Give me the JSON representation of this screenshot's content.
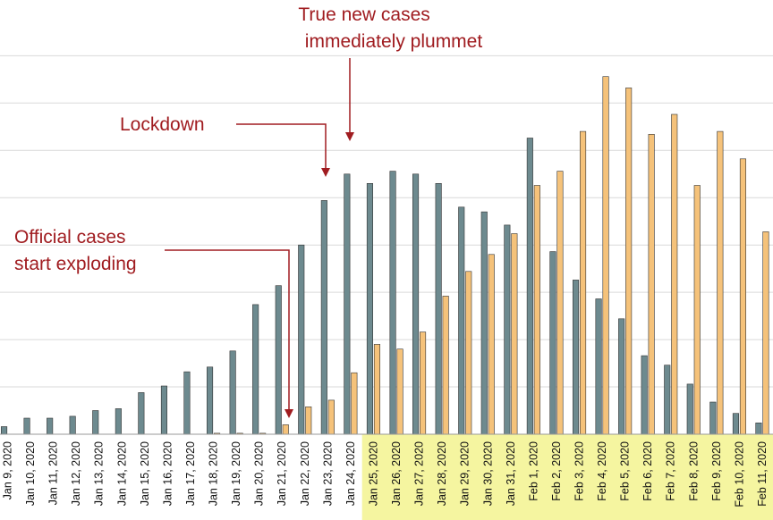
{
  "chart_data": {
    "type": "bar",
    "ylim": [
      0,
      4400
    ],
    "grid": true,
    "gridlines": [
      500,
      1000,
      1500,
      2000,
      2500,
      3000,
      3500,
      4000
    ],
    "categories": [
      "Jan 9, 2020",
      "Jan 10, 2020",
      "Jan 11, 2020",
      "Jan 12, 2020",
      "Jan 13, 2020",
      "Jan 14, 2020",
      "Jan 15, 2020",
      "Jan 16, 2020",
      "Jan 17, 2020",
      "Jan 18, 2020",
      "Jan 19, 2020",
      "Jan 20, 2020",
      "Jan 21, 2020",
      "Jan 22, 2020",
      "Jan 23, 2020",
      "Jan 24, 2020",
      "Jan 25, 2020",
      "Jan 26, 2020",
      "Jan 27, 2020",
      "Jan 28, 2020",
      "Jan 29, 2020",
      "Jan 30, 2020",
      "Jan 31, 2020",
      "Feb 1, 2020",
      "Feb 2, 2020",
      "Feb 3, 2020",
      "Feb 4, 2020",
      "Feb 5, 2020",
      "Feb 6, 2020",
      "Feb 7, 2020",
      "Feb 8, 2020",
      "Feb 9, 2020",
      "Feb 10, 2020",
      "Feb 11, 2020"
    ],
    "highlighted_categories": [
      "Jan 25, 2020",
      "Jan 26, 2020",
      "Jan 27, 2020",
      "Jan 28, 2020",
      "Jan 29, 2020",
      "Jan 30, 2020",
      "Jan 31, 2020",
      "Feb 1, 2020",
      "Feb 2, 2020",
      "Feb 3, 2020",
      "Feb 4, 2020",
      "Feb 5, 2020",
      "Feb 6, 2020",
      "Feb 7, 2020",
      "Feb 8, 2020",
      "Feb 9, 2020",
      "Feb 10, 2020",
      "Feb 11, 2020"
    ],
    "highlight_color": "#f5f5a0",
    "series": [
      {
        "color": "#6d8a8f",
        "values": [
          80,
          170,
          170,
          190,
          250,
          270,
          440,
          510,
          660,
          710,
          880,
          1370,
          1570,
          2000,
          2470,
          2750,
          2650,
          2780,
          2750,
          2650,
          2400,
          2350,
          2210,
          3130,
          1930,
          1630,
          1430,
          1220,
          830,
          730,
          530,
          340,
          220,
          120
        ]
      },
      {
        "color": "#f5c27a",
        "values": [
          0,
          0,
          0,
          0,
          0,
          0,
          0,
          0,
          0,
          10,
          10,
          10,
          100,
          290,
          360,
          650,
          950,
          900,
          1080,
          1460,
          1720,
          1900,
          2120,
          2630,
          2780,
          3200,
          3780,
          3660,
          3170,
          3380,
          2630,
          3200,
          2910,
          2140
        ]
      }
    ],
    "annotations": [
      {
        "text_lines": [
          "True new cases",
          "immediately plummet"
        ],
        "target": "Jan 24, 2020",
        "color": "#a01c20"
      },
      {
        "text_lines": [
          "Lockdown"
        ],
        "target": "Jan 23, 2020",
        "color": "#a01c20"
      },
      {
        "text_lines": [
          "Official cases",
          "start exploding"
        ],
        "target": "Jan 21, 2020",
        "color": "#a01c20"
      }
    ]
  }
}
